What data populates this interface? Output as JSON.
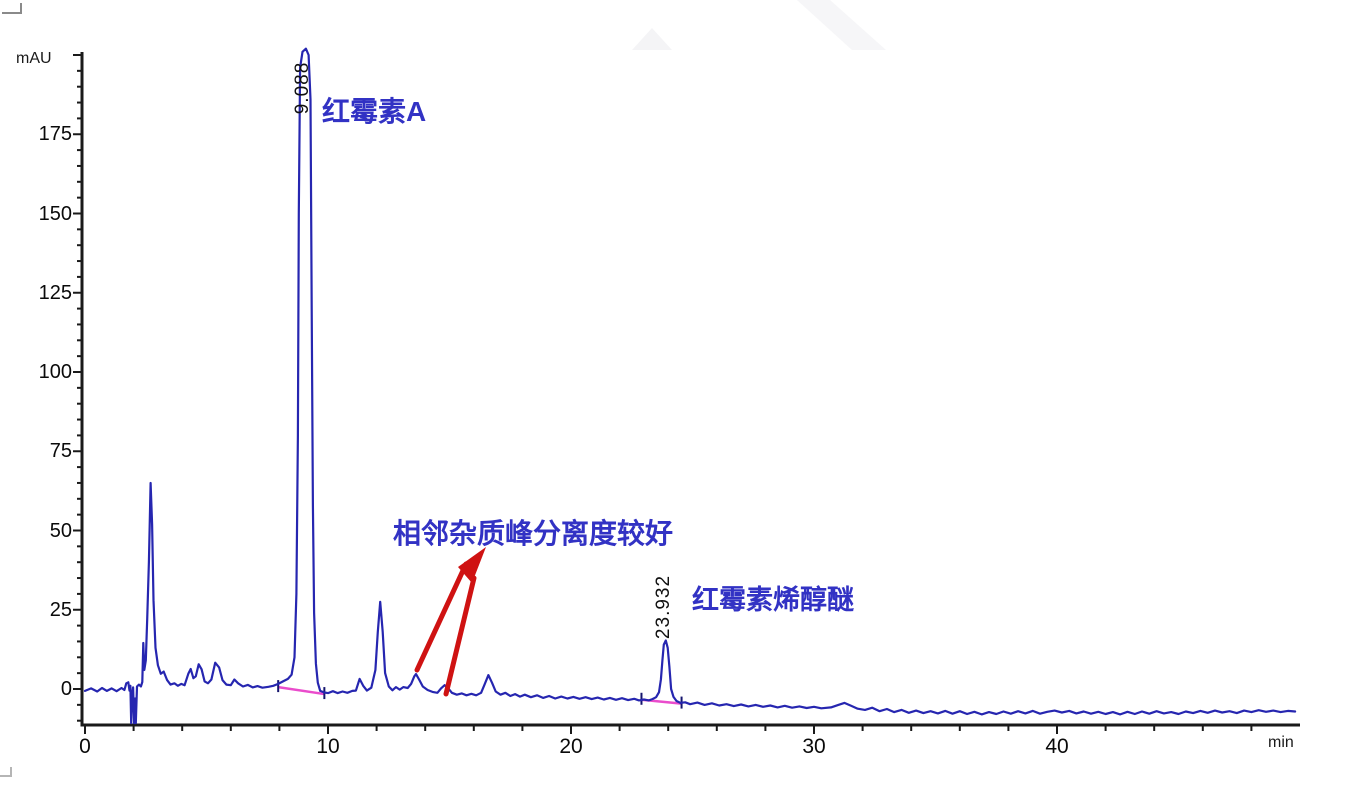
{
  "chart_data": {
    "type": "line",
    "ylabel": "mAU",
    "x_unit": "min",
    "x_range": [
      0,
      50
    ],
    "y_range": [
      -11,
      202
    ],
    "x_ticks": [
      0,
      10,
      20,
      30,
      40
    ],
    "x_minor_step": 2,
    "y_ticks": [
      0,
      25,
      50,
      75,
      100,
      125,
      150,
      175
    ],
    "y_minor_step": 5,
    "grid": false,
    "legend": "none",
    "colors": {
      "trace": "#2626b0",
      "axis": "#1a1a1a",
      "tick_text": "#0a0a0a",
      "cjk_text": "#3232c4",
      "arrow": "#cf1212",
      "integration": "#ea4ccc"
    },
    "peaks": [
      {
        "time_label": "9.088",
        "name": "红霉素A",
        "apex_mau": 202
      },
      {
        "time_label": "23.932",
        "name": "红霉素烯醇醚",
        "apex_mau": 15.3
      }
    ],
    "annotation": {
      "text": "相邻杂质峰分离度较好"
    },
    "integration_baselines": [
      {
        "t1": 7.95,
        "v1": 0.6,
        "t2": 9.85,
        "v2": -1.6
      },
      {
        "t1": 22.9,
        "v1": -3.4,
        "t2": 24.55,
        "v2": -4.6
      }
    ],
    "series": [
      {
        "name": "signal",
        "points": [
          [
            0,
            -0.6
          ],
          [
            0.25,
            0.2
          ],
          [
            0.5,
            -0.8
          ],
          [
            0.7,
            0.3
          ],
          [
            0.9,
            -0.6
          ],
          [
            1.1,
            0.2
          ],
          [
            1.3,
            -0.7
          ],
          [
            1.5,
            0.3
          ],
          [
            1.62,
            -0.3
          ],
          [
            1.7,
            1.8
          ],
          [
            1.78,
            2.1
          ],
          [
            1.83,
            -0.5
          ],
          [
            1.87,
            1.0
          ],
          [
            1.9,
            -10.8
          ],
          [
            1.94,
            -2.0
          ],
          [
            1.98,
            0.5
          ],
          [
            2.02,
            -10.8
          ],
          [
            2.06,
            -3.0
          ],
          [
            2.09,
            -10.8
          ],
          [
            2.14,
            0.8
          ],
          [
            2.22,
            1.4
          ],
          [
            2.3,
            0.8
          ],
          [
            2.36,
            2.2
          ],
          [
            2.4,
            14.5
          ],
          [
            2.44,
            6.0
          ],
          [
            2.5,
            9.0
          ],
          [
            2.56,
            22
          ],
          [
            2.63,
            40
          ],
          [
            2.7,
            65
          ],
          [
            2.76,
            52
          ],
          [
            2.82,
            28
          ],
          [
            2.9,
            13
          ],
          [
            3.0,
            7.5
          ],
          [
            3.12,
            4.8
          ],
          [
            3.24,
            5.5
          ],
          [
            3.38,
            2.8
          ],
          [
            3.52,
            1.4
          ],
          [
            3.68,
            1.8
          ],
          [
            3.82,
            1.0
          ],
          [
            3.96,
            1.6
          ],
          [
            4.1,
            1.2
          ],
          [
            4.25,
            4.8
          ],
          [
            4.35,
            6.3
          ],
          [
            4.46,
            3.4
          ],
          [
            4.56,
            4.0
          ],
          [
            4.68,
            7.8
          ],
          [
            4.8,
            6.2
          ],
          [
            4.92,
            2.4
          ],
          [
            5.06,
            1.8
          ],
          [
            5.2,
            3.0
          ],
          [
            5.36,
            8.3
          ],
          [
            5.52,
            6.8
          ],
          [
            5.66,
            2.8
          ],
          [
            5.82,
            1.4
          ],
          [
            6.0,
            1.2
          ],
          [
            6.15,
            3.0
          ],
          [
            6.3,
            1.8
          ],
          [
            6.5,
            0.8
          ],
          [
            6.7,
            1.3
          ],
          [
            6.9,
            0.5
          ],
          [
            7.1,
            0.9
          ],
          [
            7.3,
            0.4
          ],
          [
            7.55,
            0.7
          ],
          [
            7.75,
            1.0
          ],
          [
            7.95,
            1.6
          ],
          [
            8.15,
            2.4
          ],
          [
            8.35,
            3.2
          ],
          [
            8.5,
            4.5
          ],
          [
            8.62,
            10
          ],
          [
            8.7,
            30
          ],
          [
            8.76,
            80
          ],
          [
            8.8,
            150
          ],
          [
            8.85,
            196
          ],
          [
            8.95,
            201
          ],
          [
            9.09,
            202
          ],
          [
            9.2,
            200
          ],
          [
            9.28,
            186
          ],
          [
            9.33,
            120
          ],
          [
            9.38,
            58
          ],
          [
            9.43,
            24
          ],
          [
            9.5,
            8
          ],
          [
            9.58,
            2
          ],
          [
            9.68,
            -0.6
          ],
          [
            9.85,
            -1.1
          ],
          [
            10.0,
            -1.3
          ],
          [
            10.2,
            -0.7
          ],
          [
            10.4,
            -1.3
          ],
          [
            10.6,
            -0.8
          ],
          [
            10.8,
            -1.2
          ],
          [
            11.0,
            -0.6
          ],
          [
            11.15,
            -0.5
          ],
          [
            11.3,
            3.2
          ],
          [
            11.45,
            1.0
          ],
          [
            11.6,
            -0.5
          ],
          [
            11.78,
            0.4
          ],
          [
            11.95,
            6
          ],
          [
            12.05,
            18
          ],
          [
            12.15,
            27.5
          ],
          [
            12.25,
            18
          ],
          [
            12.35,
            5
          ],
          [
            12.5,
            0.8
          ],
          [
            12.65,
            -0.4
          ],
          [
            12.8,
            0.6
          ],
          [
            12.95,
            -0.2
          ],
          [
            13.1,
            0.6
          ],
          [
            13.28,
            0.3
          ],
          [
            13.42,
            1.6
          ],
          [
            13.55,
            4.0
          ],
          [
            13.62,
            4.7
          ],
          [
            13.75,
            3.0
          ],
          [
            13.9,
            0.8
          ],
          [
            14.1,
            -0.3
          ],
          [
            14.3,
            -0.9
          ],
          [
            14.5,
            -1.2
          ],
          [
            14.65,
            0.2
          ],
          [
            14.8,
            1.2
          ],
          [
            14.95,
            0.2
          ],
          [
            15.1,
            -1.2
          ],
          [
            15.3,
            -1.8
          ],
          [
            15.5,
            -1.4
          ],
          [
            15.7,
            -2.0
          ],
          [
            15.9,
            -1.5
          ],
          [
            16.1,
            -2.0
          ],
          [
            16.3,
            -1.2
          ],
          [
            16.45,
            1.5
          ],
          [
            16.6,
            4.4
          ],
          [
            16.75,
            2.0
          ],
          [
            16.9,
            -0.8
          ],
          [
            17.1,
            -1.8
          ],
          [
            17.3,
            -1.2
          ],
          [
            17.5,
            -2.2
          ],
          [
            17.7,
            -1.6
          ],
          [
            17.9,
            -2.4
          ],
          [
            18.1,
            -1.8
          ],
          [
            18.35,
            -2.6
          ],
          [
            18.6,
            -2.0
          ],
          [
            18.85,
            -2.8
          ],
          [
            19.1,
            -2.2
          ],
          [
            19.35,
            -3.0
          ],
          [
            19.6,
            -2.4
          ],
          [
            19.85,
            -3.0
          ],
          [
            20.1,
            -2.5
          ],
          [
            20.35,
            -3.1
          ],
          [
            20.6,
            -2.6
          ],
          [
            20.85,
            -3.2
          ],
          [
            21.1,
            -2.7
          ],
          [
            21.35,
            -3.3
          ],
          [
            21.6,
            -2.8
          ],
          [
            21.85,
            -3.4
          ],
          [
            22.1,
            -2.9
          ],
          [
            22.35,
            -3.5
          ],
          [
            22.6,
            -3.1
          ],
          [
            22.8,
            -3.6
          ],
          [
            23.0,
            -3.3
          ],
          [
            23.2,
            -3.6
          ],
          [
            23.35,
            -3.2
          ],
          [
            23.5,
            -2.6
          ],
          [
            23.62,
            -1.0
          ],
          [
            23.7,
            3.0
          ],
          [
            23.76,
            9.0
          ],
          [
            23.82,
            14.0
          ],
          [
            23.9,
            15.3
          ],
          [
            23.98,
            13.0
          ],
          [
            24.05,
            7.0
          ],
          [
            24.12,
            0.0
          ],
          [
            24.22,
            -2.5
          ],
          [
            24.34,
            -3.8
          ],
          [
            24.5,
            -4.4
          ],
          [
            24.7,
            -4.2
          ],
          [
            24.9,
            -4.8
          ],
          [
            25.2,
            -4.3
          ],
          [
            25.5,
            -5.0
          ],
          [
            25.8,
            -4.5
          ],
          [
            26.1,
            -5.2
          ],
          [
            26.4,
            -4.8
          ],
          [
            26.7,
            -5.4
          ],
          [
            27.0,
            -4.9
          ],
          [
            27.3,
            -5.5
          ],
          [
            27.6,
            -5.0
          ],
          [
            27.9,
            -5.6
          ],
          [
            28.2,
            -5.2
          ],
          [
            28.5,
            -5.8
          ],
          [
            28.8,
            -5.3
          ],
          [
            29.1,
            -5.9
          ],
          [
            29.4,
            -5.5
          ],
          [
            29.7,
            -6.0
          ],
          [
            30.0,
            -5.6
          ],
          [
            30.3,
            -6.1
          ],
          [
            30.7,
            -5.8
          ],
          [
            31.0,
            -5.0
          ],
          [
            31.25,
            -4.4
          ],
          [
            31.5,
            -5.2
          ],
          [
            31.8,
            -6.2
          ],
          [
            32.1,
            -6.6
          ],
          [
            32.4,
            -5.9
          ],
          [
            32.7,
            -7.0
          ],
          [
            33.0,
            -6.3
          ],
          [
            33.3,
            -7.3
          ],
          [
            33.6,
            -6.6
          ],
          [
            33.9,
            -7.5
          ],
          [
            34.2,
            -6.8
          ],
          [
            34.5,
            -7.6
          ],
          [
            34.8,
            -7.0
          ],
          [
            35.1,
            -7.7
          ],
          [
            35.4,
            -6.9
          ],
          [
            35.7,
            -7.8
          ],
          [
            36.0,
            -7.0
          ],
          [
            36.3,
            -7.9
          ],
          [
            36.6,
            -7.2
          ],
          [
            36.9,
            -8.0
          ],
          [
            37.2,
            -7.3
          ],
          [
            37.5,
            -7.9
          ],
          [
            37.8,
            -7.1
          ],
          [
            38.1,
            -7.8
          ],
          [
            38.4,
            -7.0
          ],
          [
            38.7,
            -7.7
          ],
          [
            39.0,
            -6.9
          ],
          [
            39.3,
            -7.8
          ],
          [
            39.6,
            -7.2
          ],
          [
            39.9,
            -6.8
          ],
          [
            40.2,
            -7.4
          ],
          [
            40.5,
            -6.9
          ],
          [
            40.8,
            -7.7
          ],
          [
            41.1,
            -7.1
          ],
          [
            41.4,
            -7.8
          ],
          [
            41.7,
            -7.2
          ],
          [
            42.0,
            -7.9
          ],
          [
            42.3,
            -7.3
          ],
          [
            42.6,
            -8.0
          ],
          [
            42.9,
            -7.2
          ],
          [
            43.2,
            -7.9
          ],
          [
            43.5,
            -7.1
          ],
          [
            43.8,
            -7.8
          ],
          [
            44.1,
            -7.0
          ],
          [
            44.4,
            -7.7
          ],
          [
            44.7,
            -7.3
          ],
          [
            45.0,
            -7.9
          ],
          [
            45.3,
            -7.1
          ],
          [
            45.6,
            -7.6
          ],
          [
            45.9,
            -6.9
          ],
          [
            46.2,
            -7.5
          ],
          [
            46.5,
            -6.8
          ],
          [
            46.8,
            -7.4
          ],
          [
            47.1,
            -7.0
          ],
          [
            47.4,
            -7.6
          ],
          [
            47.7,
            -6.8
          ],
          [
            48.0,
            -7.3
          ],
          [
            48.3,
            -6.7
          ],
          [
            48.6,
            -7.2
          ],
          [
            48.9,
            -6.8
          ],
          [
            49.2,
            -7.3
          ],
          [
            49.5,
            -6.9
          ],
          [
            49.8,
            -7.1
          ]
        ]
      }
    ]
  }
}
